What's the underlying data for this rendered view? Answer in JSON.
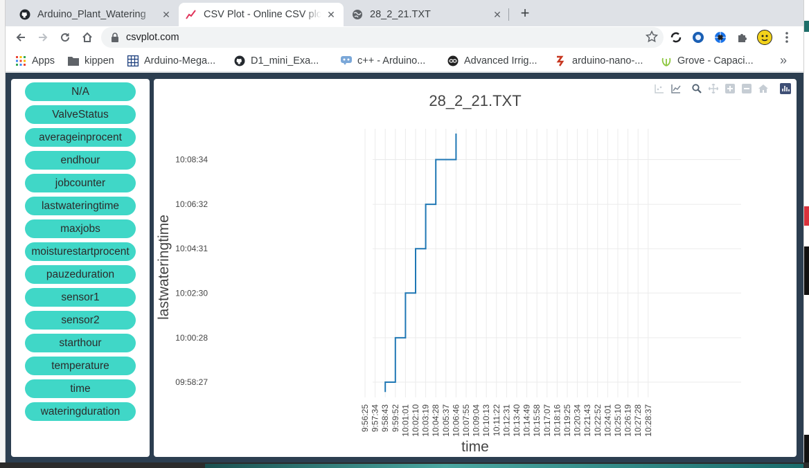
{
  "browser": {
    "tabs": [
      {
        "title": "Arduino_Plant_Watering",
        "icon": "github-icon",
        "active": false
      },
      {
        "title": "CSV Plot - Online CSV plot",
        "icon": "csvplot-logo-icon",
        "active": true
      },
      {
        "title": "28_2_21.TXT",
        "icon": "globe-icon",
        "active": false
      }
    ],
    "new_tab": "+",
    "url": "csvplot.com",
    "bookmarks": [
      {
        "label": "Apps",
        "icon": "apps-grid-icon"
      },
      {
        "label": "kippen",
        "icon": "folder-icon"
      },
      {
        "label": "Arduino-Mega...",
        "icon": "table-icon"
      },
      {
        "label": "D1_mini_Exa...",
        "icon": "github-icon"
      },
      {
        "label": "c++ - Arduino...",
        "icon": "infinity-icon"
      },
      {
        "label": "Advanced Irrig...",
        "icon": "instructables-icon"
      },
      {
        "label": "arduino-nano-...",
        "icon": "tinkercad-icon"
      },
      {
        "label": "Grove - Capaci...",
        "icon": "seeed-icon"
      }
    ],
    "bookmarks_more": "»"
  },
  "sidebar": {
    "columns": [
      "N/A",
      "ValveStatus",
      "averageinprocent",
      "endhour",
      "jobcounter",
      "lastwateringtime",
      "maxjobs",
      "moisturestartprocent",
      "pauzeduration",
      "sensor1",
      "sensor2",
      "starthour",
      "temperature",
      "time",
      "wateringduration"
    ]
  },
  "colors": {
    "pill": "#40d7c7",
    "page_bg": "#2c3e50",
    "line": "#1f77b4"
  },
  "chart_data": {
    "type": "line",
    "title": "28_2_21.TXT",
    "xlabel": "time",
    "ylabel": "lastwateringtime",
    "x_tick_labels": [
      "9:56:25",
      "9:57:34",
      "9:58:43",
      "9:59:52",
      "10:01:01",
      "10:02:10",
      "10:03:19",
      "10:04:28",
      "10:05:37",
      "10:06:46",
      "10:07:55",
      "10:09:04",
      "10:10:13",
      "10:11:22",
      "10:12:31",
      "10:13:40",
      "10:14:49",
      "10:15:58",
      "10:17:07",
      "10:18:16",
      "10:19:25",
      "10:20:34",
      "10:21:43",
      "10:22:52",
      "10:24:01",
      "10:25:10",
      "10:26:19",
      "10:27:28",
      "10:28:37"
    ],
    "y_tick_labels": [
      "09:58:27",
      "10:00:28",
      "10:02:30",
      "10:04:31",
      "10:06:32",
      "10:08:34"
    ],
    "grid": true,
    "series": [
      {
        "x": [
          "9:58:43",
          "9:58:43",
          "9:59:52",
          "9:59:52",
          "10:01:01",
          "10:01:01",
          "10:02:10",
          "10:02:10",
          "10:03:19",
          "10:03:19",
          "10:04:28",
          "10:04:28",
          "10:05:37",
          "10:05:37",
          "10:06:46",
          "10:06:46"
        ],
        "y": [
          "09:58:00",
          "09:58:27",
          "09:58:27",
          "10:00:28",
          "10:00:28",
          "10:02:30",
          "10:02:30",
          "10:04:31",
          "10:04:31",
          "10:06:32",
          "10:06:32",
          "10:08:34",
          "10:08:34",
          "10:08:34",
          "10:08:34",
          "10:09:45"
        ]
      }
    ]
  }
}
